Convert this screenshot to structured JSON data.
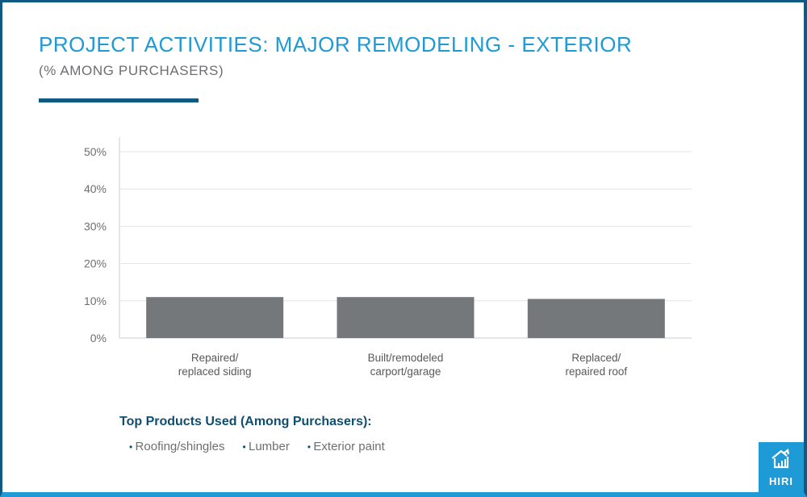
{
  "header": {
    "title": "PROJECT ACTIVITIES: MAJOR REMODELING - EXTERIOR",
    "subtitle": "(% AMONG PURCHASERS)"
  },
  "chart_data": {
    "type": "bar",
    "categories": [
      [
        "Repaired/",
        "replaced siding"
      ],
      [
        "Built/remodeled",
        "carport/garage"
      ],
      [
        "Replaced/",
        "repaired roof"
      ]
    ],
    "values": [
      11,
      11,
      10.5
    ],
    "ylim": [
      0,
      50
    ],
    "yticks": [
      "0%",
      "10%",
      "20%",
      "30%",
      "40%",
      "50%"
    ],
    "grid": true,
    "bar_color": "#75787b"
  },
  "products": {
    "title": "Top Products Used (Among Purchasers):",
    "items": [
      "Roofing/shingles",
      "Lumber",
      "Exterior paint"
    ]
  },
  "logo": {
    "text": "HIRI",
    "icon": "house-chart-icon"
  },
  "colors": {
    "accent": "#1e9ad6",
    "dark": "#0f5a82"
  }
}
